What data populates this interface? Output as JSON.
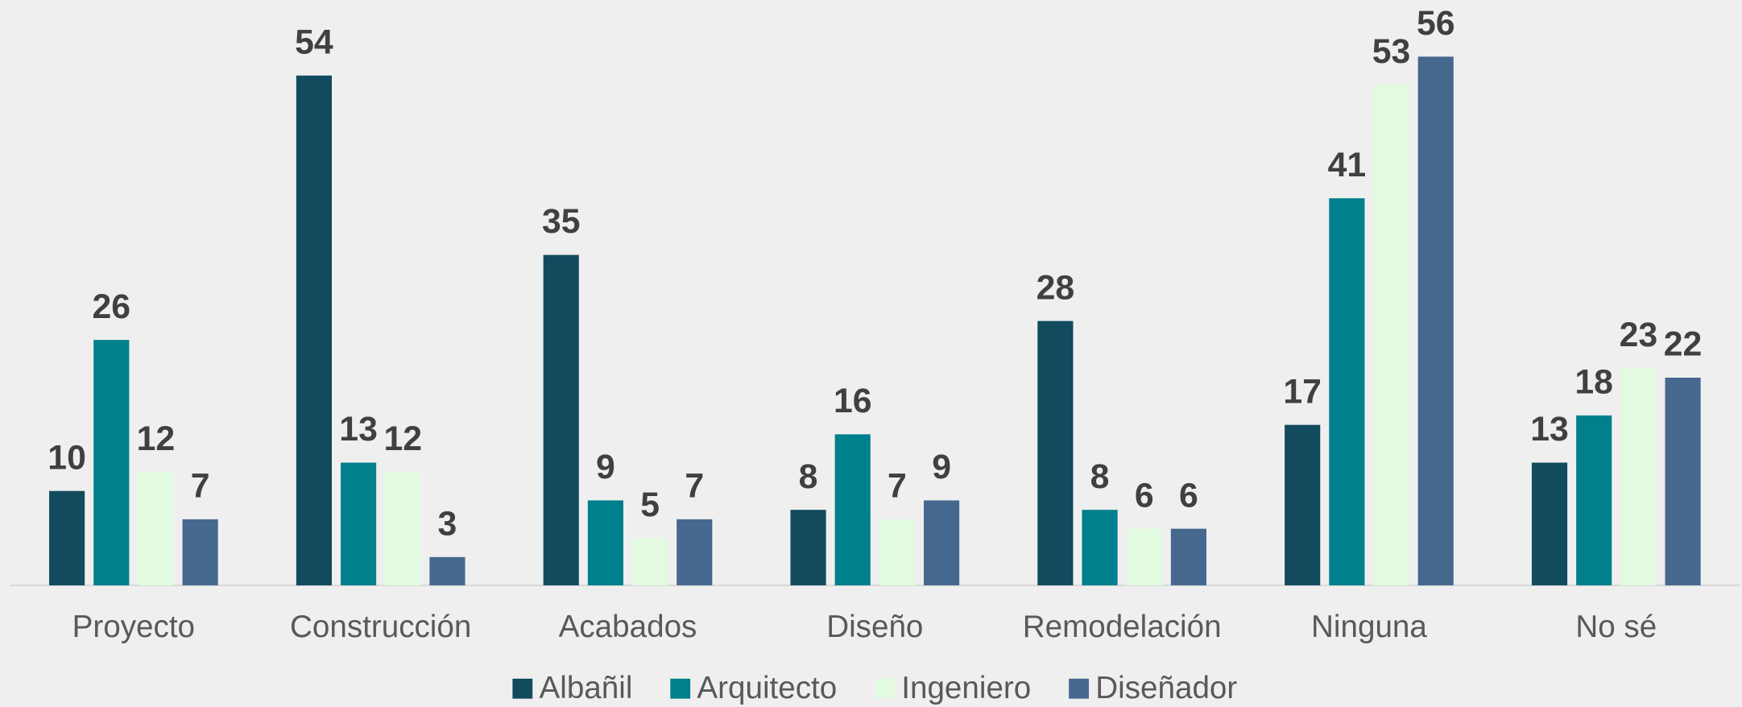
{
  "chart_data": {
    "type": "bar",
    "categories": [
      "Proyecto",
      "Construcción",
      "Acabados",
      "Diseño",
      "Remodelación",
      "Ninguna",
      "No sé"
    ],
    "series": [
      {
        "name": "Albañil",
        "color": "#124a5e",
        "values": [
          10,
          54,
          35,
          8,
          28,
          17,
          13
        ]
      },
      {
        "name": "Arquitecto",
        "color": "#00808c",
        "values": [
          26,
          13,
          9,
          16,
          8,
          41,
          18
        ]
      },
      {
        "name": "Ingeniero",
        "color": "#e2fbe0",
        "values": [
          12,
          12,
          5,
          7,
          6,
          53,
          23
        ]
      },
      {
        "name": "Diseñador",
        "color": "#46688f",
        "values": [
          7,
          3,
          7,
          9,
          6,
          56,
          22
        ]
      }
    ],
    "ylim": [
      0,
      62
    ],
    "legend": "bottom"
  }
}
